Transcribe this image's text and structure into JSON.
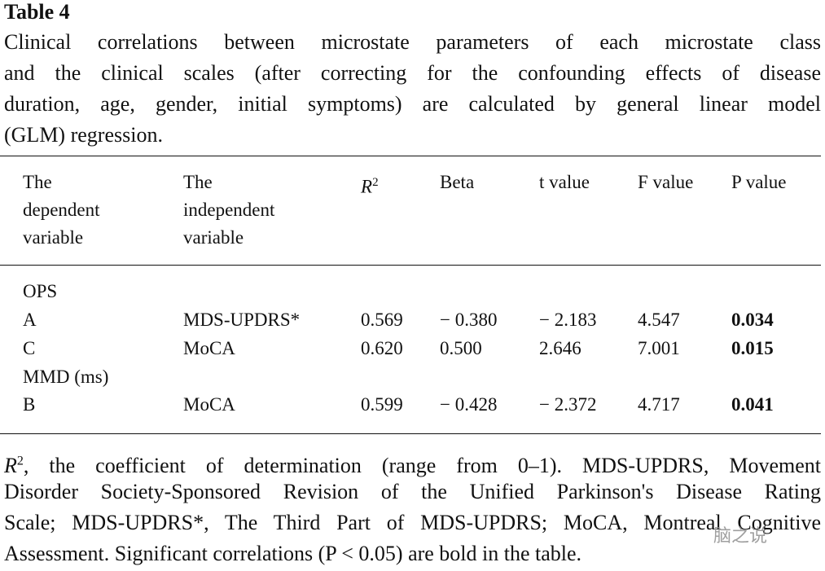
{
  "header": {
    "title": "Table 4",
    "caption_lines": [
      "Clinical correlations between microstate parameters of each microstate class",
      "and the clinical scales (after correcting for the confounding effects of disease",
      "duration, age, gender, initial symptoms) are calculated by general linear model",
      "(GLM) regression."
    ]
  },
  "table": {
    "columns": [
      [
        "The",
        "dependent",
        "variable"
      ],
      [
        "The",
        "independent",
        "variable"
      ],
      {
        "base": "R",
        "sup": "2"
      },
      [
        "Beta"
      ],
      [
        "t value"
      ],
      [
        "F value"
      ],
      [
        "P value"
      ]
    ],
    "rows": [
      [
        "OPS"
      ],
      [
        "A",
        "MDS-UPDRS*",
        "0.569",
        "− 0.380",
        "− 2.183",
        "4.547",
        "0.034"
      ],
      [
        "C",
        "MoCA",
        "0.620",
        "0.500",
        "2.646",
        "7.001",
        "0.015"
      ],
      [
        "MMD (ms)"
      ],
      [
        "B",
        "MoCA",
        "0.599",
        "− 0.428",
        "− 2.372",
        "4.717",
        "0.041"
      ]
    ]
  },
  "footnote": {
    "symbol": "R",
    "sup": "2",
    "lines": [
      ", the coefficient of determination (range from 0–1). MDS-UPDRS, Movement",
      "Disorder Society-Sponsored Revision of the Unified Parkinson's Disease Rating",
      "Scale; MDS-UPDRS*, The Third Part of MDS-UPDRS; MoCA, Montreal Cognitive",
      "Assessment. Significant correlations (P < 0.05) are bold in the table."
    ]
  },
  "watermark": "脑之说"
}
